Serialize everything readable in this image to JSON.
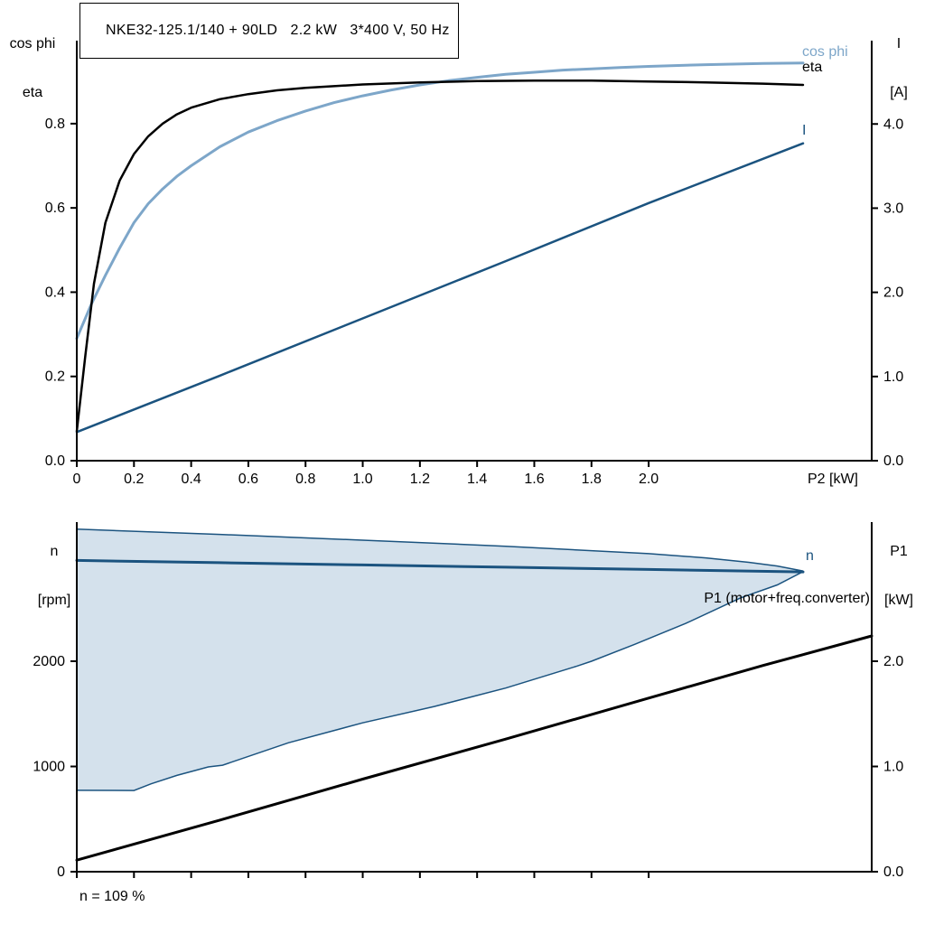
{
  "colors": {
    "black": "#000000",
    "dark_blue": "#1b537f",
    "light_blue": "#7da6c9",
    "band_fill": "#d4e1ec"
  },
  "chart_data": [
    {
      "type": "line",
      "title": "NKE32-125.1/140 + 90LD   2.2 kW   3*400 V, 50 Hz",
      "xlabel": "P2 [kW]",
      "x_range": [
        0,
        2.78
      ],
      "grid": false,
      "x_ticks": [
        {
          "v": 0,
          "label": "0"
        },
        {
          "v": 0.2,
          "label": "0.2"
        },
        {
          "v": 0.4,
          "label": "0.4"
        },
        {
          "v": 0.6,
          "label": "0.6"
        },
        {
          "v": 0.8,
          "label": "0.8"
        },
        {
          "v": 1.0,
          "label": "1.0"
        },
        {
          "v": 1.2,
          "label": "1.2"
        },
        {
          "v": 1.4,
          "label": "1.4"
        },
        {
          "v": 1.6,
          "label": "1.6"
        },
        {
          "v": 1.8,
          "label": "1.8"
        },
        {
          "v": 2.0,
          "label": "2.0"
        }
      ],
      "left_axis": {
        "title_lines": [
          "cos phi",
          "eta"
        ],
        "range": [
          0,
          0.997
        ],
        "ticks": [
          {
            "v": 0,
            "label": "0.0"
          },
          {
            "v": 0.2,
            "label": "0.2"
          },
          {
            "v": 0.4,
            "label": "0.4"
          },
          {
            "v": 0.6,
            "label": "0.6"
          },
          {
            "v": 0.8,
            "label": "0.8"
          }
        ]
      },
      "right_axis": {
        "title_lines": [
          "I",
          "[A]"
        ],
        "range": [
          0,
          4.99
        ],
        "ticks": [
          {
            "v": 0,
            "label": "0.0"
          },
          {
            "v": 1,
            "label": "1.0"
          },
          {
            "v": 2,
            "label": "2.0"
          },
          {
            "v": 3,
            "label": "3.0"
          },
          {
            "v": 4,
            "label": "4.0"
          }
        ]
      },
      "series": [
        {
          "name": "cos phi",
          "label": "cos phi",
          "axis": "left",
          "color_key": "light_blue",
          "width": 3,
          "points": [
            [
              0,
              0.29
            ],
            [
              0.05,
              0.37
            ],
            [
              0.1,
              0.44
            ],
            [
              0.15,
              0.505
            ],
            [
              0.2,
              0.565
            ],
            [
              0.25,
              0.61
            ],
            [
              0.3,
              0.645
            ],
            [
              0.35,
              0.675
            ],
            [
              0.4,
              0.7
            ],
            [
              0.5,
              0.745
            ],
            [
              0.6,
              0.78
            ],
            [
              0.7,
              0.807
            ],
            [
              0.8,
              0.83
            ],
            [
              0.9,
              0.85
            ],
            [
              1.0,
              0.866
            ],
            [
              1.1,
              0.88
            ],
            [
              1.2,
              0.892
            ],
            [
              1.3,
              0.902
            ],
            [
              1.4,
              0.91
            ],
            [
              1.5,
              0.917
            ],
            [
              1.6,
              0.922
            ],
            [
              1.7,
              0.927
            ],
            [
              1.8,
              0.93
            ],
            [
              1.9,
              0.933
            ],
            [
              2.0,
              0.936
            ],
            [
              2.2,
              0.94
            ],
            [
              2.4,
              0.943
            ],
            [
              2.54,
              0.944
            ]
          ]
        },
        {
          "name": "eta",
          "label": "eta",
          "axis": "left",
          "color_key": "black",
          "width": 2.5,
          "points": [
            [
              0,
              0.07
            ],
            [
              0.03,
              0.25
            ],
            [
              0.06,
              0.42
            ],
            [
              0.1,
              0.565
            ],
            [
              0.15,
              0.665
            ],
            [
              0.2,
              0.728
            ],
            [
              0.25,
              0.77
            ],
            [
              0.3,
              0.8
            ],
            [
              0.35,
              0.822
            ],
            [
              0.4,
              0.838
            ],
            [
              0.5,
              0.858
            ],
            [
              0.6,
              0.87
            ],
            [
              0.7,
              0.879
            ],
            [
              0.8,
              0.885
            ],
            [
              1.0,
              0.893
            ],
            [
              1.2,
              0.898
            ],
            [
              1.4,
              0.901
            ],
            [
              1.6,
              0.902
            ],
            [
              1.8,
              0.902
            ],
            [
              2.0,
              0.9
            ],
            [
              2.2,
              0.898
            ],
            [
              2.4,
              0.895
            ],
            [
              2.54,
              0.892
            ]
          ]
        },
        {
          "name": "I",
          "label": "I",
          "axis": "right",
          "color_key": "dark_blue",
          "width": 2.5,
          "points": [
            [
              0,
              0.34
            ],
            [
              0.5,
              1.01
            ],
            [
              1.0,
              1.69
            ],
            [
              1.5,
              2.37
            ],
            [
              2.0,
              3.06
            ],
            [
              2.54,
              3.77
            ]
          ]
        }
      ]
    },
    {
      "type": "line",
      "xlabel": "",
      "x_range": [
        0,
        2.78
      ],
      "grid": false,
      "x_ticks": [
        {
          "v": 0,
          "label": ""
        },
        {
          "v": 0.2,
          "label": ""
        },
        {
          "v": 0.4,
          "label": ""
        },
        {
          "v": 0.6,
          "label": ""
        },
        {
          "v": 0.8,
          "label": ""
        },
        {
          "v": 1.0,
          "label": ""
        },
        {
          "v": 1.2,
          "label": ""
        },
        {
          "v": 1.4,
          "label": ""
        },
        {
          "v": 1.6,
          "label": ""
        },
        {
          "v": 1.8,
          "label": ""
        },
        {
          "v": 2.0,
          "label": ""
        }
      ],
      "left_axis": {
        "title_lines": [
          "n",
          "[rpm]"
        ],
        "range": [
          0,
          3322
        ],
        "ticks": [
          {
            "v": 0,
            "label": "0"
          },
          {
            "v": 1000,
            "label": "1000"
          },
          {
            "v": 2000,
            "label": "2000"
          }
        ]
      },
      "right_axis": {
        "title_lines": [
          "P1",
          "[kW]"
        ],
        "range": [
          0,
          3.322
        ],
        "ticks": [
          {
            "v": 0,
            "label": "0.0"
          },
          {
            "v": 1,
            "label": "1.0"
          },
          {
            "v": 2,
            "label": "2.0"
          }
        ]
      },
      "band": {
        "name": "speed-control-range",
        "axis": "left",
        "top": [
          [
            0,
            3255
          ],
          [
            0.5,
            3205
          ],
          [
            1.0,
            3150
          ],
          [
            1.5,
            3093
          ],
          [
            2.0,
            3022
          ],
          [
            2.2,
            2982
          ],
          [
            2.35,
            2940
          ],
          [
            2.45,
            2905
          ],
          [
            2.54,
            2858
          ]
        ],
        "bottom": [
          [
            0,
            773
          ],
          [
            0.2,
            772
          ],
          [
            0.26,
            835
          ],
          [
            0.35,
            915
          ],
          [
            0.46,
            996
          ],
          [
            0.51,
            1012
          ],
          [
            0.74,
            1225
          ],
          [
            1.0,
            1415
          ],
          [
            1.25,
            1570
          ],
          [
            1.5,
            1745
          ],
          [
            1.75,
            1955
          ],
          [
            1.8,
            2000
          ],
          [
            1.95,
            2160
          ],
          [
            2.13,
            2360
          ],
          [
            2.32,
            2600
          ],
          [
            2.45,
            2725
          ],
          [
            2.54,
            2852
          ]
        ]
      },
      "series": [
        {
          "name": "n",
          "label": "n",
          "axis": "left",
          "color_key": "dark_blue",
          "width": 3,
          "points": [
            [
              0,
              2958
            ],
            [
              0.5,
              2937
            ],
            [
              1.0,
              2915
            ],
            [
              1.5,
              2894
            ],
            [
              2.0,
              2872
            ],
            [
              2.54,
              2849
            ]
          ]
        },
        {
          "name": "P1",
          "label": "P1 (motor+freq.converter)",
          "axis": "right",
          "color_key": "black",
          "width": 3,
          "points": [
            [
              0,
              0.11
            ],
            [
              0.5,
              0.49
            ],
            [
              1.0,
              0.88
            ],
            [
              1.5,
              1.26
            ],
            [
              2.0,
              1.65
            ],
            [
              2.4,
              1.96
            ],
            [
              2.78,
              2.24
            ]
          ]
        }
      ],
      "footnote": "n = 109 %"
    }
  ]
}
